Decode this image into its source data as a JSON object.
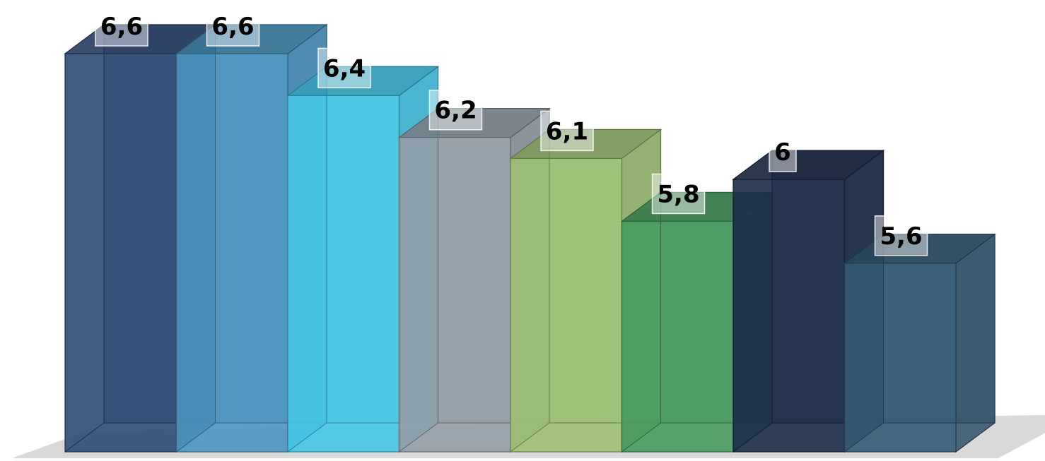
{
  "chart_data": {
    "type": "bar",
    "style": "3d-transparent-columns",
    "title": "",
    "xlabel": "",
    "ylabel": "",
    "categories": [
      "",
      "",
      "",
      "",
      "",
      "",
      "",
      ""
    ],
    "values": [
      6.6,
      6.6,
      6.4,
      6.2,
      6.1,
      5.8,
      6.0,
      5.6
    ],
    "data_labels": [
      "6,6",
      "6,6",
      "6,4",
      "6,2",
      "6,1",
      "5,8",
      "6",
      "5,6"
    ],
    "ylim": [
      4.7,
      6.6
    ],
    "grid": false,
    "legend": "none",
    "colors": [
      "#2f4a75",
      "#4a93bf",
      "#45c6e6",
      "#939ea7",
      "#9cc074",
      "#479a5f",
      "#1c2c48",
      "#345a74"
    ]
  }
}
